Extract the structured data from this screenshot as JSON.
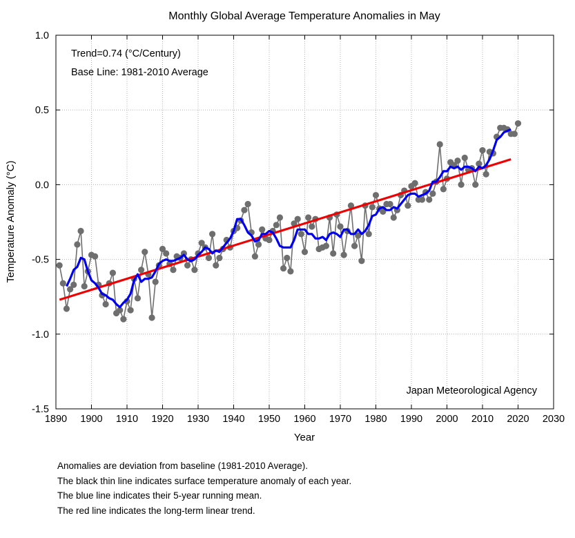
{
  "chart_data": {
    "type": "line",
    "title": "Monthly Global Average Temperature Anomalies in May",
    "xlabel": "Year",
    "ylabel": "Temperature Anomaly (°C)",
    "xlim": [
      1890,
      2030
    ],
    "ylim": [
      -1.5,
      1.0
    ],
    "xticks": [
      "1890",
      "1900",
      "1910",
      "1920",
      "1930",
      "1940",
      "1950",
      "1960",
      "1970",
      "1980",
      "1990",
      "2000",
      "2010",
      "2020",
      "2030"
    ],
    "yticks": [
      "1.0",
      "0.5",
      "0.0",
      "-0.5",
      "-1.0",
      "-1.5"
    ],
    "grid": true,
    "annotations": [
      "Trend=0.74 (°C/Century)",
      "Base Line: 1981-2010 Average",
      "Japan Meteorological Agency"
    ],
    "colors": {
      "anomaly": "#6e6e6e",
      "running_mean": "#0000ee",
      "trend": "#ee0000"
    },
    "series": [
      {
        "style": "gray line with circle markers",
        "x": [
          1891,
          1892,
          1893,
          1894,
          1895,
          1896,
          1897,
          1898,
          1899,
          1900,
          1901,
          1902,
          1903,
          1904,
          1905,
          1906,
          1907,
          1908,
          1909,
          1910,
          1911,
          1912,
          1913,
          1914,
          1915,
          1916,
          1917,
          1918,
          1919,
          1920,
          1921,
          1922,
          1923,
          1924,
          1925,
          1926,
          1927,
          1928,
          1929,
          1930,
          1931,
          1932,
          1933,
          1934,
          1935,
          1936,
          1937,
          1938,
          1939,
          1940,
          1941,
          1942,
          1943,
          1944,
          1945,
          1946,
          1947,
          1948,
          1949,
          1950,
          1951,
          1952,
          1953,
          1954,
          1955,
          1956,
          1957,
          1958,
          1959,
          1960,
          1961,
          1962,
          1963,
          1964,
          1965,
          1966,
          1967,
          1968,
          1969,
          1970,
          1971,
          1972,
          1973,
          1974,
          1975,
          1976,
          1977,
          1978,
          1979,
          1980,
          1981,
          1982,
          1983,
          1984,
          1985,
          1986,
          1987,
          1988,
          1989,
          1990,
          1991,
          1992,
          1993,
          1994,
          1995,
          1996,
          1997,
          1998,
          1999,
          2000,
          2001,
          2002,
          2003,
          2004,
          2005,
          2006,
          2007,
          2008,
          2009,
          2010,
          2011,
          2012,
          2013,
          2014,
          2015,
          2016,
          2017,
          2018,
          2019,
          2020
        ],
        "y": [
          -0.54,
          -0.66,
          -0.83,
          -0.7,
          -0.67,
          -0.4,
          -0.31,
          -0.68,
          -0.58,
          -0.47,
          -0.48,
          -0.67,
          -0.74,
          -0.8,
          -0.66,
          -0.59,
          -0.86,
          -0.84,
          -0.9,
          -0.78,
          -0.84,
          -0.63,
          -0.76,
          -0.57,
          -0.45,
          -0.6,
          -0.89,
          -0.65,
          -0.54,
          -0.43,
          -0.46,
          -0.53,
          -0.57,
          -0.48,
          -0.49,
          -0.46,
          -0.54,
          -0.5,
          -0.57,
          -0.46,
          -0.39,
          -0.42,
          -0.49,
          -0.33,
          -0.54,
          -0.49,
          -0.43,
          -0.37,
          -0.42,
          -0.31,
          -0.29,
          -0.24,
          -0.17,
          -0.13,
          -0.32,
          -0.48,
          -0.4,
          -0.3,
          -0.36,
          -0.37,
          -0.31,
          -0.27,
          -0.22,
          -0.56,
          -0.49,
          -0.58,
          -0.26,
          -0.23,
          -0.33,
          -0.45,
          -0.22,
          -0.28,
          -0.23,
          -0.43,
          -0.42,
          -0.41,
          -0.22,
          -0.46,
          -0.2,
          -0.28,
          -0.47,
          -0.31,
          -0.14,
          -0.41,
          -0.34,
          -0.51,
          -0.14,
          -0.33,
          -0.15,
          -0.07,
          -0.16,
          -0.18,
          -0.13,
          -0.13,
          -0.22,
          -0.17,
          -0.07,
          -0.04,
          -0.14,
          -0.01,
          0.01,
          -0.1,
          -0.1,
          -0.05,
          -0.1,
          -0.06,
          0.02,
          0.27,
          -0.03,
          0.04,
          0.15,
          0.13,
          0.16,
          0.0,
          0.18,
          0.1,
          0.11,
          0.0,
          0.14,
          0.23,
          0.07,
          0.22,
          0.21,
          0.32,
          0.38,
          0.38,
          0.37,
          0.34,
          0.34,
          0.41
        ]
      },
      {
        "name": "5-year running mean",
        "style": "blue line",
        "x": [
          1893,
          1894,
          1895,
          1896,
          1897,
          1898,
          1899,
          1900,
          1901,
          1902,
          1903,
          1904,
          1905,
          1906,
          1907,
          1908,
          1909,
          1910,
          1911,
          1912,
          1913,
          1914,
          1915,
          1916,
          1917,
          1918,
          1919,
          1920,
          1921,
          1922,
          1923,
          1924,
          1925,
          1926,
          1927,
          1928,
          1929,
          1930,
          1931,
          1932,
          1933,
          1934,
          1935,
          1936,
          1937,
          1938,
          1939,
          1940,
          1941,
          1942,
          1943,
          1944,
          1945,
          1946,
          1947,
          1948,
          1949,
          1950,
          1951,
          1952,
          1953,
          1954,
          1955,
          1956,
          1957,
          1958,
          1959,
          1960,
          1961,
          1962,
          1963,
          1964,
          1965,
          1966,
          1967,
          1968,
          1969,
          1970,
          1971,
          1972,
          1973,
          1974,
          1975,
          1976,
          1977,
          1978,
          1979,
          1980,
          1981,
          1982,
          1983,
          1984,
          1985,
          1986,
          1987,
          1988,
          1989,
          1990,
          1991,
          1992,
          1993,
          1994,
          1995,
          1996,
          1997,
          1998,
          1999,
          2000,
          2001,
          2002,
          2003,
          2004,
          2005,
          2006,
          2007,
          2008,
          2009,
          2010,
          2011,
          2012,
          2013,
          2014,
          2015,
          2016,
          2017,
          2018
        ],
        "y": [
          -0.68,
          -0.63,
          -0.57,
          -0.55,
          -0.49,
          -0.5,
          -0.58,
          -0.64,
          -0.66,
          -0.69,
          -0.73,
          -0.74,
          -0.76,
          -0.77,
          -0.8,
          -0.82,
          -0.79,
          -0.77,
          -0.73,
          -0.64,
          -0.6,
          -0.65,
          -0.63,
          -0.63,
          -0.62,
          -0.58,
          -0.53,
          -0.51,
          -0.5,
          -0.51,
          -0.51,
          -0.5,
          -0.49,
          -0.47,
          -0.5,
          -0.51,
          -0.5,
          -0.47,
          -0.45,
          -0.42,
          -0.43,
          -0.46,
          -0.44,
          -0.45,
          -0.42,
          -0.39,
          -0.36,
          -0.31,
          -0.23,
          -0.23,
          -0.27,
          -0.32,
          -0.34,
          -0.38,
          -0.37,
          -0.33,
          -0.33,
          -0.31,
          -0.32,
          -0.36,
          -0.41,
          -0.42,
          -0.42,
          -0.42,
          -0.37,
          -0.3,
          -0.3,
          -0.3,
          -0.33,
          -0.33,
          -0.36,
          -0.36,
          -0.35,
          -0.37,
          -0.33,
          -0.32,
          -0.33,
          -0.35,
          -0.3,
          -0.3,
          -0.33,
          -0.33,
          -0.3,
          -0.33,
          -0.31,
          -0.27,
          -0.21,
          -0.2,
          -0.16,
          -0.15,
          -0.17,
          -0.17,
          -0.15,
          -0.16,
          -0.13,
          -0.1,
          -0.07,
          -0.06,
          -0.06,
          -0.08,
          -0.07,
          -0.06,
          -0.04,
          0.02,
          0.02,
          0.05,
          0.09,
          0.09,
          0.12,
          0.11,
          0.12,
          0.1,
          0.12,
          0.12,
          0.11,
          0.09,
          0.12,
          0.11,
          0.13,
          0.17,
          0.23,
          0.3,
          0.32,
          0.35,
          0.36,
          0.37
        ]
      },
      {
        "name": "Linear trend",
        "style": "red line",
        "x": [
          1891,
          2018
        ],
        "y": [
          -0.77,
          0.17
        ]
      }
    ]
  },
  "notes": [
    "Anomalies are deviation from baseline (1981-2010 Average).",
    "The black thin line indicates surface temperature anomaly of each year.",
    "The blue line indicates their 5-year running mean.",
    "The red line indicates the long-term linear trend."
  ]
}
